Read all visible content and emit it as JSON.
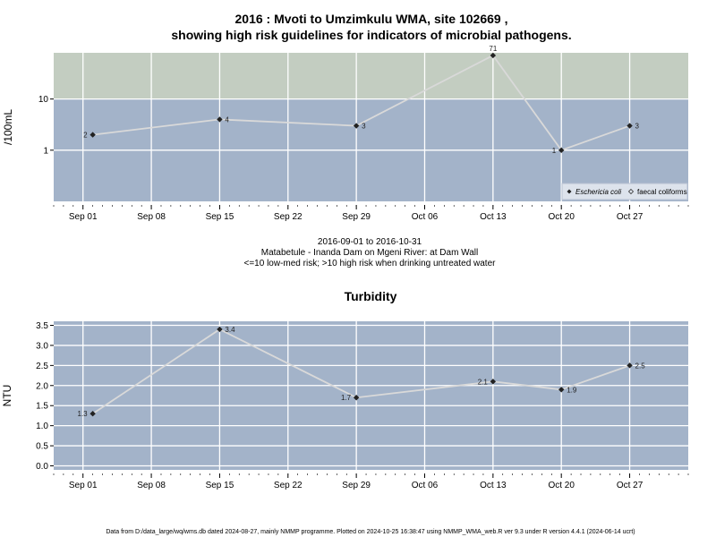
{
  "colors": {
    "panel_bg": "#a3b3c9",
    "high_risk_bg": "#c3cdc1",
    "grid": "#ffffff",
    "line": "#d9d9d9",
    "point": "#222222"
  },
  "title_line1": "2016 : Mvoti to Umzimkulu WMA, site 102669 ,",
  "title_line2": "showing high risk guidelines for indicators of microbial pathogens.",
  "info": {
    "line1": "2016-09-01 to 2016-10-31",
    "line2": "Matabetule - Inanda Dam on Mgeni River: at Dam Wall",
    "line3": "<=10 low-med risk; >10 high risk when drinking untreated water"
  },
  "footer": "Data from D:/data_large/wq/wms.db dated 2024-08-27, mainly NMMP programme. Plotted on 2024-10-25 16:38:47 using NMMP_WMA_web.R ver 9.3 under R version 4.4.1 (2024-06-14 ucrt)",
  "chart_data": [
    {
      "type": "line",
      "title": "",
      "ylabel": "/100mL",
      "xlabel": "",
      "y_scale": "log",
      "ylim": [
        0.1,
        80
      ],
      "xlim": [
        "2016-08-29",
        "2016-11-02"
      ],
      "yticks": [
        1,
        10
      ],
      "ytick_labels": [
        "1",
        "10"
      ],
      "xticks": [
        "2016-09-01",
        "2016-09-08",
        "2016-09-15",
        "2016-09-22",
        "2016-09-29",
        "2016-10-06",
        "2016-10-13",
        "2016-10-20",
        "2016-10-27"
      ],
      "xtick_labels": [
        "Sep 01",
        "Sep 08",
        "Sep 15",
        "Sep 22",
        "Sep 29",
        "Oct 06",
        "Oct 13",
        "Oct 20",
        "Oct 27"
      ],
      "guideline": {
        "value": 10,
        "band": "high risk above"
      },
      "legend": {
        "position": "bottom-right",
        "entries": [
          "Eschericia coli",
          "faecal coliforms"
        ]
      },
      "series": [
        {
          "name": "Eschericia coli",
          "x": [
            "2016-09-02",
            "2016-09-15",
            "2016-09-29",
            "2016-10-13",
            "2016-10-20",
            "2016-10-27"
          ],
          "values": [
            2,
            4,
            3,
            71,
            1,
            3
          ],
          "labels": [
            "2",
            "4",
            "3",
            "71",
            "1",
            "3"
          ]
        }
      ]
    },
    {
      "type": "line",
      "title": "Turbidity",
      "ylabel": "NTU",
      "xlabel": "",
      "ylim": [
        -0.1,
        3.6
      ],
      "xlim": [
        "2016-08-29",
        "2016-11-02"
      ],
      "yticks": [
        0,
        0.5,
        1,
        1.5,
        2,
        2.5,
        3,
        3.5
      ],
      "ytick_labels": [
        "0.0",
        "0.5",
        "1.0",
        "1.5",
        "2.0",
        "2.5",
        "3.0",
        "3.5"
      ],
      "xticks": [
        "2016-09-01",
        "2016-09-08",
        "2016-09-15",
        "2016-09-22",
        "2016-09-29",
        "2016-10-06",
        "2016-10-13",
        "2016-10-20",
        "2016-10-27"
      ],
      "xtick_labels": [
        "Sep 01",
        "Sep 08",
        "Sep 15",
        "Sep 22",
        "Sep 29",
        "Oct 06",
        "Oct 13",
        "Oct 20",
        "Oct 27"
      ],
      "series": [
        {
          "x": [
            "2016-09-02",
            "2016-09-15",
            "2016-09-29",
            "2016-10-13",
            "2016-10-20",
            "2016-10-27"
          ],
          "values": [
            1.3,
            3.4,
            1.7,
            2.1,
            1.9,
            2.5
          ],
          "labels": [
            "1.3",
            "3.4",
            "1.7",
            "2.1",
            "1.9",
            "2.5"
          ]
        }
      ]
    }
  ]
}
